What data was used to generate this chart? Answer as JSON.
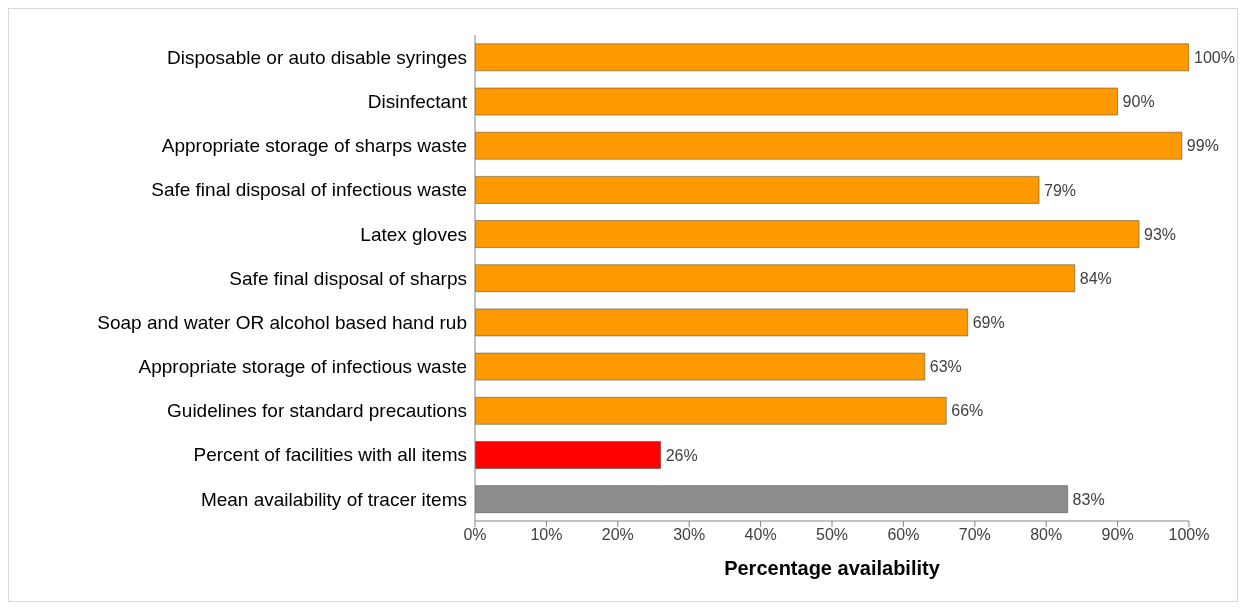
{
  "chart_data": {
    "type": "bar",
    "orientation": "horizontal",
    "xlabel": "Percentage availability",
    "categories": [
      "Disposable or auto disable syringes",
      "Disinfectant",
      "Appropriate storage of sharps waste",
      "Safe final disposal of infectious waste",
      "Latex gloves",
      "Safe final disposal of sharps",
      "Soap and water OR alcohol based hand rub",
      "Appropriate storage of infectious waste",
      "Guidelines for standard precautions",
      "Percent of facilities with all items",
      "Mean availability of tracer items"
    ],
    "values": [
      100,
      90,
      99,
      79,
      93,
      84,
      69,
      63,
      66,
      26,
      83
    ],
    "value_labels": [
      "100%",
      "90%",
      "99%",
      "79%",
      "93%",
      "84%",
      "69%",
      "63%",
      "66%",
      "26%",
      "83%"
    ],
    "colors": [
      "#ff9900",
      "#ff9900",
      "#ff9900",
      "#ff9900",
      "#ff9900",
      "#ff9900",
      "#ff9900",
      "#ff9900",
      "#ff9900",
      "#ff0000",
      "#8c8c8c"
    ],
    "xlim": [
      0,
      100
    ],
    "xticks": [
      {
        "value": 0,
        "label": "0%"
      },
      {
        "value": 10,
        "label": "10%"
      },
      {
        "value": 20,
        "label": "20%"
      },
      {
        "value": 30,
        "label": "30%"
      },
      {
        "value": 40,
        "label": "40%"
      },
      {
        "value": 50,
        "label": "50%"
      },
      {
        "value": 60,
        "label": "60%"
      },
      {
        "value": 70,
        "label": "70%"
      },
      {
        "value": 80,
        "label": "80%"
      },
      {
        "value": 90,
        "label": "90%"
      },
      {
        "value": 100,
        "label": "100%"
      }
    ],
    "grid": false,
    "legend": false
  }
}
